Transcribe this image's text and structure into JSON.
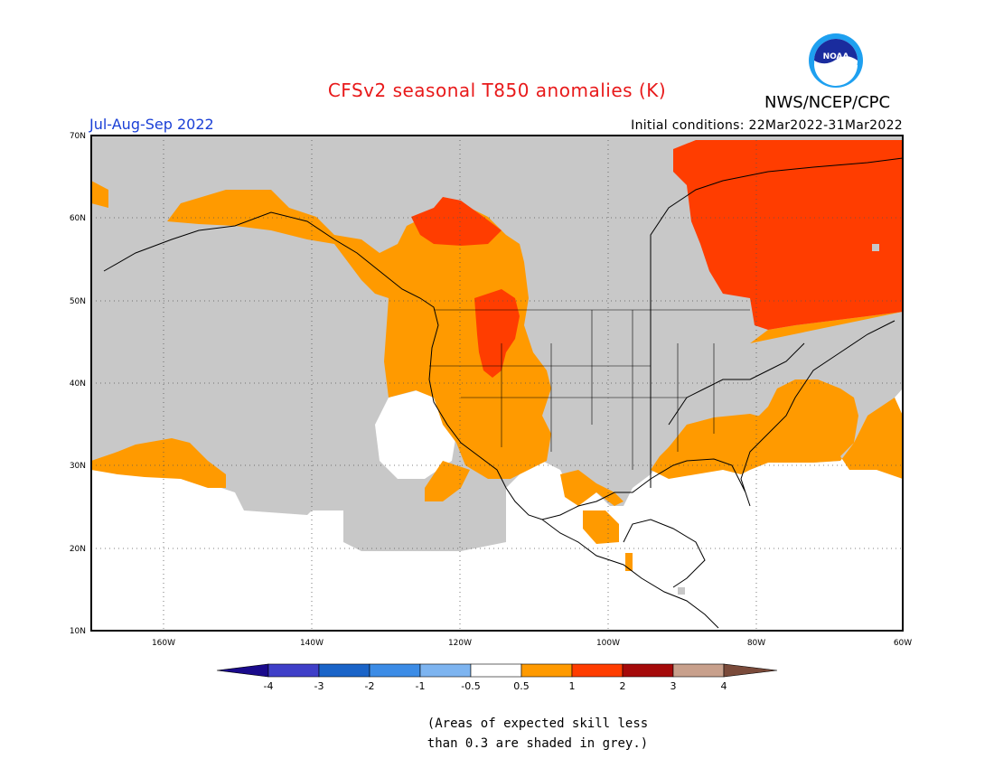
{
  "header": {
    "title": "CFSv2 seasonal T850 anomalies (K)",
    "agency": "NWS/NCEP/CPC",
    "period": "Jul-Aug-Sep 2022",
    "initial_conditions": "Initial conditions: 22Mar2022-31Mar2022"
  },
  "logo": {
    "text": "NOAA"
  },
  "map": {
    "lat_labels": [
      "70N",
      "60N",
      "50N",
      "40N",
      "30N",
      "20N",
      "10N"
    ],
    "lon_labels": [
      "160W",
      "140W",
      "120W",
      "100W",
      "80W",
      "60W"
    ]
  },
  "colorbar": {
    "labels": [
      "-4",
      "-3",
      "-2",
      "-1",
      "-0.5",
      "0.5",
      "1",
      "2",
      "3",
      "4"
    ],
    "colors": [
      "#1a0a8c",
      "#3f3fc8",
      "#1a64c8",
      "#3c8ce6",
      "#7db4f0",
      "#ffffff",
      "#ff9a00",
      "#ff3d00",
      "#a50a0a",
      "#c8a08c",
      "#7a4a3a"
    ]
  },
  "legend": {
    "skill_note_line1": "(Areas of expected skill less",
    "skill_note_line2": "than 0.3 are shaded in grey.)",
    "grey_color": "#c8c8c8"
  }
}
